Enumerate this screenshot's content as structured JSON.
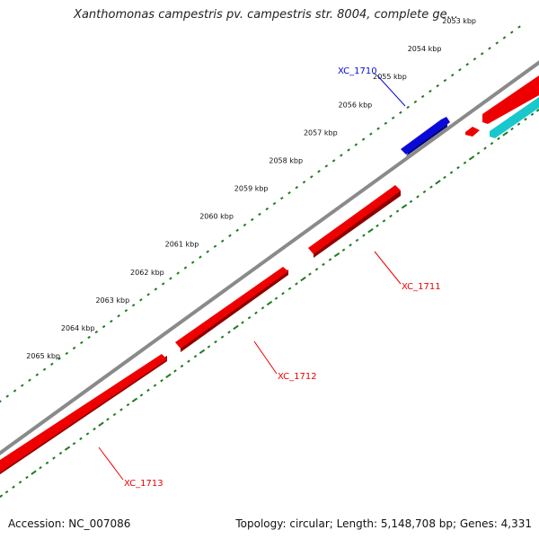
{
  "title": "Xanthomonas campestris pv. campestris str. 8004, complete ge...",
  "footer": {
    "accession": "Accession: NC_007086",
    "summary": "Topology: circular; Length: 5,148,708 bp; Genes: 4,331"
  },
  "ticks": [
    {
      "label": "2053 kbp",
      "kbp": 2053
    },
    {
      "label": "2054 kbp",
      "kbp": 2054
    },
    {
      "label": "2055 kbp",
      "kbp": 2055
    },
    {
      "label": "2056 kbp",
      "kbp": 2056
    },
    {
      "label": "2057 kbp",
      "kbp": 2057
    },
    {
      "label": "2058 kbp",
      "kbp": 2058
    },
    {
      "label": "2059 kbp",
      "kbp": 2059
    },
    {
      "label": "2060 kbp",
      "kbp": 2060
    },
    {
      "label": "2061 kbp",
      "kbp": 2061
    },
    {
      "label": "2062 kbp",
      "kbp": 2062
    },
    {
      "label": "2063 kbp",
      "kbp": 2063
    },
    {
      "label": "2064 kbp",
      "kbp": 2064
    },
    {
      "label": "2065 kbp",
      "kbp": 2065
    }
  ],
  "genes": [
    {
      "label": "XC_1710",
      "strand": "forward"
    },
    {
      "label": "XC_1711",
      "strand": "reverse"
    },
    {
      "label": "XC_1712",
      "strand": "reverse"
    },
    {
      "label": "XC_1713",
      "strand": "reverse"
    }
  ],
  "colors": {
    "forward_gene": "#0a0ad8",
    "reverse_gene": "#ee0000",
    "other_feature": "#19c8cc",
    "backbone": "#8a8a8a",
    "tick_marks": "#1e7a1e"
  }
}
